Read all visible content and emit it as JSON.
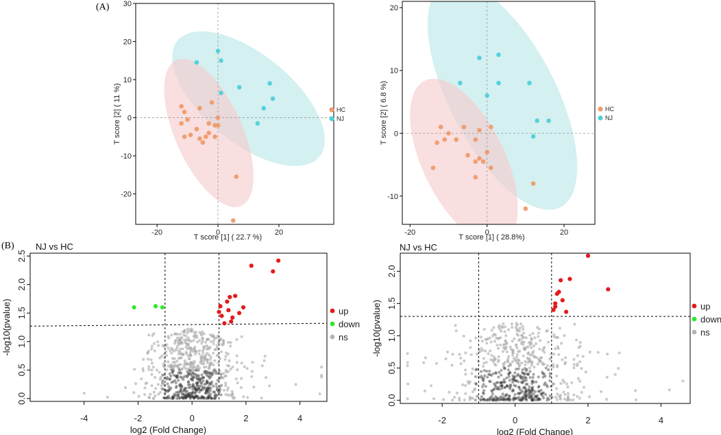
{
  "figure": {
    "label_a": "(A)",
    "label_b": "(B)"
  },
  "chart_data": [
    {
      "type": "scatter",
      "name": "pca-left",
      "xlabel": "T score [1] ( 22.7 %)",
      "ylabel": "T score [2] ( 11 %)",
      "xlim": [
        -27,
        38
      ],
      "ylim": [
        -28,
        30
      ],
      "xticks": [
        -20,
        0,
        20
      ],
      "xtick_labels": [
        "-20",
        "0",
        "20"
      ],
      "yticks": [
        -20,
        -10,
        0,
        10,
        20,
        30
      ],
      "ytick_labels": [
        "-20",
        "-10",
        "0",
        "10",
        "20",
        "30"
      ],
      "ellipses": [
        {
          "group": "NJ",
          "cx": 10,
          "cy": 5,
          "rx": 28,
          "ry": 12.5,
          "angle_deg": -30,
          "color": "#b9e6e9"
        },
        {
          "group": "HC",
          "cx": -3,
          "cy": -4,
          "rx": 22,
          "ry": 10.5,
          "angle_deg": -58,
          "color": "#f6cccc"
        }
      ],
      "legend": [
        {
          "label": "HC",
          "color": "#ef9a6a"
        },
        {
          "label": "NJ",
          "color": "#4fcfd9"
        }
      ],
      "series": [
        {
          "name": "HC",
          "color": "#ef9a6a",
          "points": [
            [
              -12,
              3
            ],
            [
              -11,
              1.5
            ],
            [
              -10,
              -0.5
            ],
            [
              -12,
              -1.5
            ],
            [
              -11,
              -5
            ],
            [
              -9,
              -4.5
            ],
            [
              -7,
              -3
            ],
            [
              -6,
              -5.5
            ],
            [
              -6,
              2.5
            ],
            [
              -5,
              -6.5
            ],
            [
              -4,
              -5
            ],
            [
              -3,
              -4
            ],
            [
              -3,
              -1.5
            ],
            [
              -2,
              4
            ],
            [
              0,
              0
            ],
            [
              0,
              -2
            ],
            [
              -1,
              -5
            ],
            [
              6,
              -15.5
            ],
            [
              5,
              -27
            ],
            [
              -1,
              -2
            ]
          ]
        },
        {
          "name": "NJ",
          "color": "#4fcfd9",
          "points": [
            [
              -7,
              14.5
            ],
            [
              0,
              17.5
            ],
            [
              1,
              15
            ],
            [
              1,
              6.5
            ],
            [
              7,
              8
            ],
            [
              17,
              9
            ],
            [
              18,
              5
            ],
            [
              15,
              2.5
            ],
            [
              13,
              -1.5
            ]
          ]
        }
      ]
    },
    {
      "type": "scatter",
      "name": "pca-right",
      "xlabel": "T score [1] ( 28.8%)",
      "ylabel": "T score [2] ( 6.8 %)",
      "xlim": [
        -22,
        28
      ],
      "ylim": [
        -14.5,
        21
      ],
      "xticks": [
        -20,
        0,
        20
      ],
      "xtick_labels": [
        "-20",
        "0",
        "20"
      ],
      "yticks": [
        -10,
        0,
        10,
        20
      ],
      "ytick_labels": [
        "-10",
        "0",
        "10",
        "20"
      ],
      "ellipses": [
        {
          "group": "NJ",
          "cx": 4,
          "cy": 6,
          "rx": 24,
          "ry": 11.5,
          "angle_deg": -42,
          "color": "#b9e6e9"
        },
        {
          "group": "HC",
          "cx": -6,
          "cy": -4.5,
          "rx": 17,
          "ry": 9,
          "angle_deg": -42,
          "color": "#f6cccc"
        }
      ],
      "legend": [
        {
          "label": "HC",
          "color": "#ef9a6a"
        },
        {
          "label": "NJ",
          "color": "#4fcfd9"
        }
      ],
      "series": [
        {
          "name": "HC",
          "color": "#ef9a6a",
          "points": [
            [
              -12,
              1
            ],
            [
              -11,
              -1
            ],
            [
              -13,
              -1.5
            ],
            [
              -14,
              -5.5
            ],
            [
              -8,
              -1
            ],
            [
              -6,
              1
            ],
            [
              -5,
              -3.5
            ],
            [
              -3,
              -1
            ],
            [
              -3,
              -4.5
            ],
            [
              -2,
              -4
            ],
            [
              -1,
              -4.5
            ],
            [
              0,
              -3
            ],
            [
              1,
              -5.5
            ],
            [
              -2,
              0.5
            ],
            [
              1,
              1
            ],
            [
              -3,
              -7
            ],
            [
              12,
              -8
            ],
            [
              10,
              -12
            ],
            [
              -10,
              0
            ]
          ]
        },
        {
          "name": "NJ",
          "color": "#4fcfd9",
          "points": [
            [
              -7,
              8
            ],
            [
              -2,
              12
            ],
            [
              3,
              12.5
            ],
            [
              3,
              8
            ],
            [
              0,
              6
            ],
            [
              11,
              8
            ],
            [
              13,
              2
            ],
            [
              16,
              2
            ],
            [
              12,
              -0.5
            ]
          ]
        }
      ]
    },
    {
      "type": "scatter",
      "name": "volcano-left",
      "title": "NJ vs HC",
      "xlabel": "log2 (Fold Change)",
      "ylabel": "-log10(pvalue)",
      "xlim": [
        -6,
        5
      ],
      "ylim": [
        -0.05,
        2.55
      ],
      "xticks": [
        -4,
        -2,
        0,
        2,
        4
      ],
      "xtick_labels": [
        "-4",
        "-2",
        "0",
        "2",
        "4"
      ],
      "yticks": [
        0,
        0.5,
        1,
        1.5,
        2,
        2.5
      ],
      "ytick_labels": [
        "0.0",
        "0.5",
        "1.0",
        "1.5",
        "2.0",
        "2.5"
      ],
      "vlines": [
        -1,
        1
      ],
      "threshold_line": {
        "from": [
          -6,
          1.27
        ],
        "to": [
          5,
          1.32
        ]
      },
      "legend": [
        {
          "label": "up",
          "color": "#e31a1c"
        },
        {
          "label": "down",
          "color": "#2ee82e"
        },
        {
          "label": "ns",
          "color": "#b3b3b3"
        }
      ],
      "ns_cloud": {
        "count": 700,
        "seed": 11
      },
      "series": [
        {
          "name": "up",
          "color": "#e31a1c",
          "points": [
            [
              1.0,
              1.52
            ],
            [
              1.05,
              1.62
            ],
            [
              1.1,
              1.45
            ],
            [
              1.2,
              1.32
            ],
            [
              1.35,
              1.55
            ],
            [
              1.4,
              1.78
            ],
            [
              1.5,
              1.42
            ],
            [
              1.45,
              1.35
            ],
            [
              1.6,
              1.8
            ],
            [
              1.75,
              1.5
            ],
            [
              1.9,
              1.6
            ],
            [
              2.2,
              2.33
            ],
            [
              3.0,
              2.23
            ],
            [
              3.2,
              2.42
            ],
            [
              1.3,
              1.7
            ]
          ]
        },
        {
          "name": "down",
          "color": "#2ee82e",
          "points": [
            [
              -2.15,
              1.6
            ],
            [
              -1.35,
              1.62
            ],
            [
              -1.1,
              1.6
            ]
          ]
        }
      ]
    },
    {
      "type": "scatter",
      "name": "volcano-right",
      "title": "NJ vs HC",
      "xlabel": "log2 (Fold Change)",
      "ylabel": "-log10(pvalue)",
      "xlim": [
        -3.15,
        4.8
      ],
      "ylim": [
        -0.05,
        2.28
      ],
      "xticks": [
        -2,
        0,
        2,
        4
      ],
      "xtick_labels": [
        "-2",
        "0",
        "2",
        "4"
      ],
      "yticks": [
        0,
        0.5,
        1,
        1.5,
        2
      ],
      "ytick_labels": [
        "0.0",
        "0.5",
        "1.0",
        "1.5",
        "2.0"
      ],
      "vlines": [
        -1,
        1
      ],
      "threshold_line": {
        "from": [
          -3.15,
          1.3
        ],
        "to": [
          4.8,
          1.3
        ]
      },
      "legend": [
        {
          "label": "up",
          "color": "#e31a1c"
        },
        {
          "label": "down",
          "color": "#2ee82e"
        },
        {
          "label": "ns",
          "color": "#b3b3b3"
        }
      ],
      "ns_cloud": {
        "count": 650,
        "seed": 23
      },
      "series": [
        {
          "name": "up",
          "color": "#e31a1c",
          "points": [
            [
              1.05,
              1.4
            ],
            [
              1.1,
              1.5
            ],
            [
              1.15,
              1.65
            ],
            [
              1.2,
              1.68
            ],
            [
              1.25,
              1.86
            ],
            [
              1.3,
              1.55
            ],
            [
              1.4,
              1.37
            ],
            [
              1.5,
              1.88
            ],
            [
              2.0,
              2.24
            ],
            [
              2.55,
              1.72
            ],
            [
              1.1,
              1.45
            ]
          ]
        },
        {
          "name": "down",
          "color": "#2ee82e",
          "points": []
        }
      ]
    }
  ]
}
